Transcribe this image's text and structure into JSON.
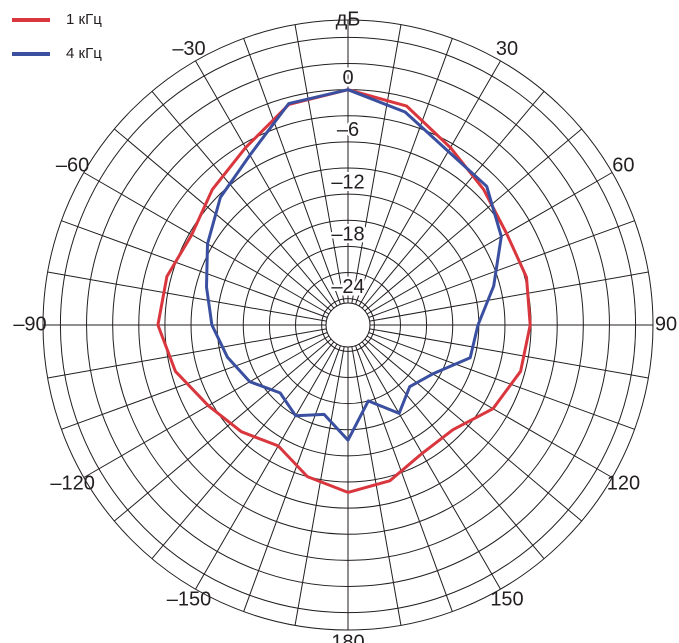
{
  "chart_data": {
    "type": "polar",
    "title": "дБ",
    "theta": [
      -180,
      -165,
      -150,
      -135,
      -120,
      -105,
      -90,
      -75,
      -60,
      -45,
      -30,
      -15,
      0,
      15,
      30,
      45,
      60,
      75,
      90,
      105,
      120,
      135,
      150,
      165
    ],
    "series": [
      {
        "name": "1 кГц",
        "color": "#d9363e",
        "values": [
          -7.8,
          -9,
          -11,
          -9.7,
          -8.5,
          -6.5,
          -5.2,
          -5.5,
          -6.3,
          -5,
          -3.5,
          -0.8,
          0,
          -1,
          -3.5,
          -5,
          -6,
          -5.8,
          -6.1,
          -6.5,
          -7.8,
          -10,
          -10,
          -8.5
        ]
      },
      {
        "name": "4 кГц",
        "color": "#3a4fa0",
        "values": [
          -13.8,
          -16.4,
          -15,
          -16,
          -14,
          -12.7,
          -11.4,
          -10.2,
          -8.4,
          -6.3,
          -4.5,
          -0.7,
          0,
          -1.7,
          -4,
          -4.5,
          -6.7,
          -9.7,
          -12.1,
          -12.5,
          -15.8,
          -17,
          -15.3,
          -18
        ]
      }
    ],
    "rlim": [
      -24.5,
      8
    ],
    "rticks": [
      {
        "value": -24,
        "label": "–24"
      },
      {
        "value": -18,
        "label": "–18"
      },
      {
        "value": -12,
        "label": "–12"
      },
      {
        "value": -6,
        "label": "–6"
      },
      0
    ],
    "rgrid": [
      -21,
      -15,
      -9,
      -3,
      3,
      6
    ],
    "thetaticks": [
      {
        "value": -150,
        "label": "–150"
      },
      {
        "value": -120,
        "label": "–120"
      },
      {
        "value": -90,
        "label": "–90"
      },
      {
        "value": -60,
        "label": "–60"
      },
      {
        "value": -30,
        "label": "–30"
      },
      30,
      60,
      90,
      120,
      150,
      180
    ],
    "theta_grid_step": 10,
    "legend": "upper left"
  }
}
